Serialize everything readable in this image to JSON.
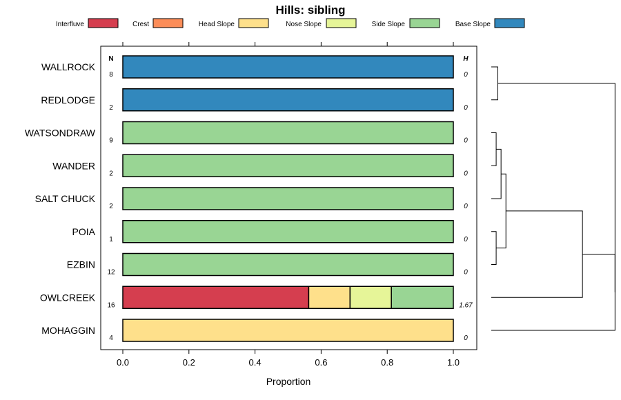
{
  "chart_data": {
    "type": "bar",
    "orientation": "horizontal-stacked",
    "title": "Hills: sibling",
    "xlabel": "Proportion",
    "xlim": [
      0,
      1
    ],
    "x_ticks": [
      "0.0",
      "0.2",
      "0.4",
      "0.6",
      "0.8",
      "1.0"
    ],
    "n_header": "N",
    "h_header": "H",
    "legend_position": "top",
    "series": [
      {
        "name": "Interfluve",
        "color": "#D53E4F"
      },
      {
        "name": "Crest",
        "color": "#FC8D59"
      },
      {
        "name": "Head Slope",
        "color": "#FEE08B"
      },
      {
        "name": "Nose Slope",
        "color": "#E6F598"
      },
      {
        "name": "Side Slope",
        "color": "#99D594"
      },
      {
        "name": "Base Slope",
        "color": "#3288BD"
      }
    ],
    "categories": [
      "WALLROCK",
      "REDLODGE",
      "WATSONDRAW",
      "WANDER",
      "SALT CHUCK",
      "POIA",
      "EZBIN",
      "OWLCREEK",
      "MOHAGGIN"
    ],
    "rows": [
      {
        "label": "WALLROCK",
        "n": "8",
        "h": "0",
        "values": [
          0,
          0,
          0,
          0,
          0,
          1
        ]
      },
      {
        "label": "REDLODGE",
        "n": "2",
        "h": "0",
        "values": [
          0,
          0,
          0,
          0,
          0,
          1
        ]
      },
      {
        "label": "WATSONDRAW",
        "n": "9",
        "h": "0",
        "values": [
          0,
          0,
          0,
          0,
          1,
          0
        ]
      },
      {
        "label": "WANDER",
        "n": "2",
        "h": "0",
        "values": [
          0,
          0,
          0,
          0,
          1,
          0
        ]
      },
      {
        "label": "SALT CHUCK",
        "n": "2",
        "h": "0",
        "values": [
          0,
          0,
          0,
          0,
          1,
          0
        ]
      },
      {
        "label": "POIA",
        "n": "1",
        "h": "0",
        "values": [
          0,
          0,
          0,
          0,
          1,
          0
        ]
      },
      {
        "label": "EZBIN",
        "n": "12",
        "h": "0",
        "values": [
          0,
          0,
          0,
          0,
          1,
          0
        ]
      },
      {
        "label": "OWLCREEK",
        "n": "16",
        "h": "1.67",
        "values": [
          0.5625,
          0,
          0.125,
          0.125,
          0.1875,
          0
        ]
      },
      {
        "label": "MOHAGGIN",
        "n": "4",
        "h": "0",
        "values": [
          0,
          0,
          1,
          0,
          0,
          0
        ]
      }
    ],
    "dendrogram": {
      "type": "hierarchical-clustering",
      "merges": [
        {
          "left": "WALLROCK",
          "right": "REDLODGE",
          "height": 0.04
        },
        {
          "left": "WATSONDRAW",
          "right": "WANDER",
          "height": 0.03
        },
        {
          "left": "g2",
          "right": "SALT CHUCK",
          "height": 0.06
        },
        {
          "left": "POIA",
          "right": "EZBIN",
          "height": 0.03
        },
        {
          "left": "g3",
          "right": "g4",
          "height": 0.09
        },
        {
          "left": "g5",
          "right": "OWLCREEK",
          "height": 0.56
        },
        {
          "left": "g6",
          "right": "MOHAGGIN",
          "height": 0.76
        },
        {
          "left": "g1",
          "right": "g7",
          "height": 0.76
        }
      ]
    }
  }
}
